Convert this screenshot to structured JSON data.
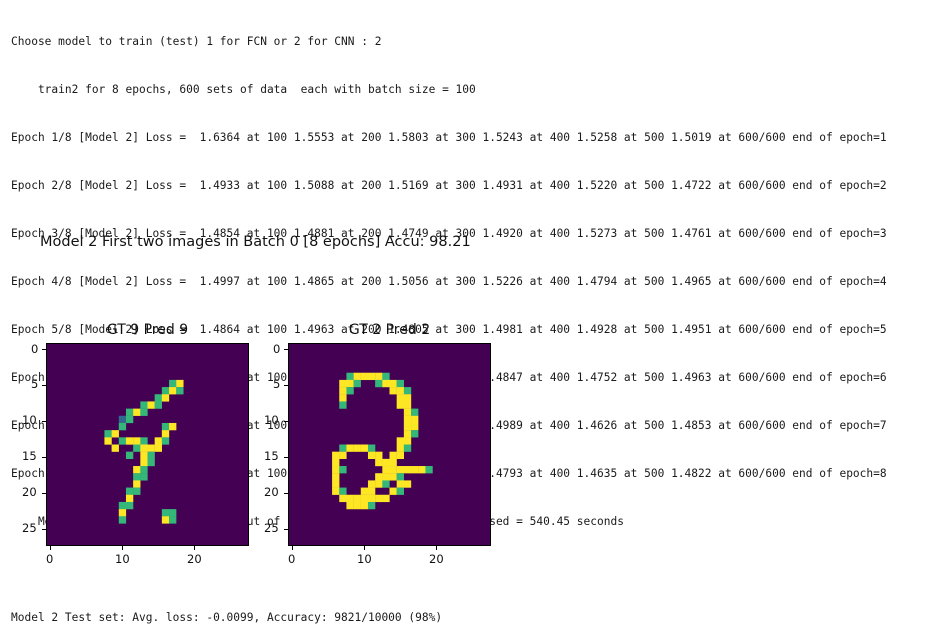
{
  "console": {
    "lines": [
      "Choose model to train (test) 1 for FCN or 2 for CNN : 2",
      "    train2 for 8 epochs, 600 sets of data  each with batch size = 100",
      "Epoch 1/8 [Model 2] Loss =  1.6364 at 100 1.5553 at 200 1.5803 at 300 1.5243 at 400 1.5258 at 500 1.5019 at 600/600 end of epoch=1",
      "Epoch 2/8 [Model 2] Loss =  1.4933 at 100 1.5088 at 200 1.5169 at 300 1.4931 at 400 1.5220 at 500 1.4722 at 600/600 end of epoch=2",
      "Epoch 3/8 [Model 2] Loss =  1.4854 at 100 1.4881 at 200 1.4749 at 300 1.4920 at 400 1.5273 at 500 1.4761 at 600/600 end of epoch=3",
      "Epoch 4/8 [Model 2] Loss =  1.4997 at 100 1.4865 at 200 1.5056 at 300 1.5226 at 400 1.4794 at 500 1.4965 at 600/600 end of epoch=4",
      "Epoch 5/8 [Model 2] Loss =  1.4864 at 100 1.4963 at 200 1.4805 at 300 1.4981 at 400 1.4928 at 500 1.4951 at 600/600 end of epoch=5",
      "Epoch 6/8 [Model 2] Loss =  1.4658 at 100 1.4716 at 200 1.4740 at 300 1.4847 at 400 1.4752 at 500 1.4963 at 600/600 end of epoch=6",
      "Epoch 7/8 [Model 2] Loss =  1.4693 at 100 1.4878 at 200 1.4837 at 300 1.4989 at 400 1.4626 at 500 1.4853 at 600/600 end of epoch=7",
      "Epoch 8/8 [Model 2] Loss =  1.4957 at 100 1.4644 at 200 1.4965 at 300 1.4793 at 400 1.4635 at 500 1.4822 at 600/600 end of epoch=8",
      "    Memory usage: Free 1691.2 MB (out of 13240.0 MB)  and  Train Time used = 540.45 seconds",
      "",
      "Model 2 Test set: Avg. loss: -0.0099, Accuracy: 9821/10000 (98%)"
    ]
  },
  "figure": {
    "suptitle": "Model 2 First two images in Batch 0 [8 epochs] Accu: 98.21",
    "colors": {
      "background": "#440154",
      "low": "#31688e",
      "mid": "#35b779",
      "high": "#fde725"
    },
    "panels": [
      {
        "title": "GT 9 Pred 9",
        "y_ticks": [
          "0",
          "5",
          "10",
          "15",
          "20",
          "25"
        ],
        "x_ticks": [
          "0",
          "10",
          "20"
        ],
        "pixels": [
          [
            5,
            17,
            2
          ],
          [
            5,
            18,
            3
          ],
          [
            6,
            16,
            2
          ],
          [
            6,
            17,
            3
          ],
          [
            6,
            18,
            2
          ],
          [
            7,
            15,
            2
          ],
          [
            7,
            16,
            3
          ],
          [
            8,
            13,
            2
          ],
          [
            8,
            14,
            3
          ],
          [
            8,
            15,
            2
          ],
          [
            9,
            11,
            2
          ],
          [
            9,
            12,
            3
          ],
          [
            9,
            13,
            2
          ],
          [
            10,
            10,
            1
          ],
          [
            10,
            11,
            2
          ],
          [
            11,
            10,
            2
          ],
          [
            11,
            16,
            2
          ],
          [
            11,
            17,
            3
          ],
          [
            12,
            8,
            2
          ],
          [
            12,
            9,
            3
          ],
          [
            12,
            16,
            3
          ],
          [
            13,
            8,
            3
          ],
          [
            13,
            10,
            2
          ],
          [
            13,
            11,
            3
          ],
          [
            13,
            12,
            3
          ],
          [
            13,
            13,
            2
          ],
          [
            13,
            15,
            3
          ],
          [
            13,
            16,
            2
          ],
          [
            14,
            9,
            3
          ],
          [
            14,
            12,
            2
          ],
          [
            14,
            13,
            3
          ],
          [
            14,
            14,
            3
          ],
          [
            14,
            15,
            3
          ],
          [
            15,
            11,
            2
          ],
          [
            15,
            13,
            3
          ],
          [
            15,
            14,
            2
          ],
          [
            16,
            13,
            3
          ],
          [
            16,
            14,
            2
          ],
          [
            17,
            12,
            3
          ],
          [
            17,
            13,
            2
          ],
          [
            18,
            12,
            2
          ],
          [
            18,
            13,
            2
          ],
          [
            19,
            12,
            3
          ],
          [
            20,
            11,
            2
          ],
          [
            20,
            12,
            2
          ],
          [
            21,
            11,
            3
          ],
          [
            22,
            10,
            2
          ],
          [
            22,
            11,
            2
          ],
          [
            23,
            10,
            3
          ],
          [
            23,
            16,
            2
          ],
          [
            23,
            17,
            2
          ],
          [
            24,
            10,
            2
          ],
          [
            24,
            16,
            3
          ],
          [
            24,
            17,
            2
          ]
        ]
      },
      {
        "title": "GT 2 Pred 2",
        "y_ticks": [
          "0",
          "5",
          "10",
          "15",
          "20",
          "25"
        ],
        "x_ticks": [
          "0",
          "10",
          "20"
        ],
        "pixels": [
          [
            4,
            8,
            2
          ],
          [
            4,
            9,
            3
          ],
          [
            4,
            10,
            3
          ],
          [
            4,
            11,
            3
          ],
          [
            4,
            12,
            3
          ],
          [
            4,
            13,
            2
          ],
          [
            5,
            7,
            3
          ],
          [
            5,
            8,
            3
          ],
          [
            5,
            9,
            2
          ],
          [
            5,
            12,
            2
          ],
          [
            5,
            13,
            3
          ],
          [
            5,
            14,
            3
          ],
          [
            5,
            15,
            2
          ],
          [
            6,
            7,
            3
          ],
          [
            6,
            8,
            2
          ],
          [
            6,
            14,
            3
          ],
          [
            6,
            15,
            3
          ],
          [
            6,
            16,
            2
          ],
          [
            7,
            7,
            3
          ],
          [
            7,
            15,
            3
          ],
          [
            7,
            16,
            3
          ],
          [
            8,
            7,
            2
          ],
          [
            8,
            15,
            3
          ],
          [
            8,
            16,
            3
          ],
          [
            9,
            16,
            3
          ],
          [
            9,
            17,
            2
          ],
          [
            10,
            16,
            3
          ],
          [
            10,
            17,
            3
          ],
          [
            11,
            16,
            3
          ],
          [
            11,
            17,
            3
          ],
          [
            12,
            16,
            3
          ],
          [
            12,
            17,
            2
          ],
          [
            13,
            15,
            3
          ],
          [
            13,
            16,
            3
          ],
          [
            14,
            7,
            2
          ],
          [
            14,
            8,
            3
          ],
          [
            14,
            9,
            3
          ],
          [
            14,
            10,
            3
          ],
          [
            14,
            11,
            2
          ],
          [
            14,
            15,
            3
          ],
          [
            14,
            16,
            2
          ],
          [
            15,
            6,
            3
          ],
          [
            15,
            7,
            3
          ],
          [
            15,
            11,
            3
          ],
          [
            15,
            12,
            3
          ],
          [
            15,
            14,
            3
          ],
          [
            15,
            15,
            3
          ],
          [
            16,
            6,
            3
          ],
          [
            16,
            12,
            3
          ],
          [
            16,
            13,
            3
          ],
          [
            16,
            14,
            3
          ],
          [
            17,
            6,
            3
          ],
          [
            17,
            7,
            2
          ],
          [
            17,
            13,
            3
          ],
          [
            17,
            14,
            3
          ],
          [
            17,
            15,
            3
          ],
          [
            17,
            16,
            3
          ],
          [
            17,
            17,
            3
          ],
          [
            17,
            18,
            3
          ],
          [
            17,
            19,
            2
          ],
          [
            18,
            6,
            3
          ],
          [
            18,
            12,
            3
          ],
          [
            18,
            13,
            3
          ],
          [
            18,
            14,
            3
          ],
          [
            18,
            15,
            2
          ],
          [
            19,
            6,
            3
          ],
          [
            19,
            11,
            3
          ],
          [
            19,
            12,
            3
          ],
          [
            19,
            13,
            2
          ],
          [
            19,
            15,
            3
          ],
          [
            19,
            16,
            3
          ],
          [
            20,
            6,
            3
          ],
          [
            20,
            7,
            2
          ],
          [
            20,
            10,
            3
          ],
          [
            20,
            11,
            3
          ],
          [
            20,
            14,
            3
          ],
          [
            20,
            15,
            2
          ],
          [
            21,
            7,
            3
          ],
          [
            21,
            8,
            3
          ],
          [
            21,
            9,
            3
          ],
          [
            21,
            10,
            3
          ],
          [
            21,
            11,
            3
          ],
          [
            21,
            12,
            3
          ],
          [
            21,
            13,
            3
          ],
          [
            22,
            8,
            3
          ],
          [
            22,
            9,
            3
          ],
          [
            22,
            10,
            3
          ],
          [
            22,
            11,
            2
          ]
        ]
      }
    ]
  }
}
